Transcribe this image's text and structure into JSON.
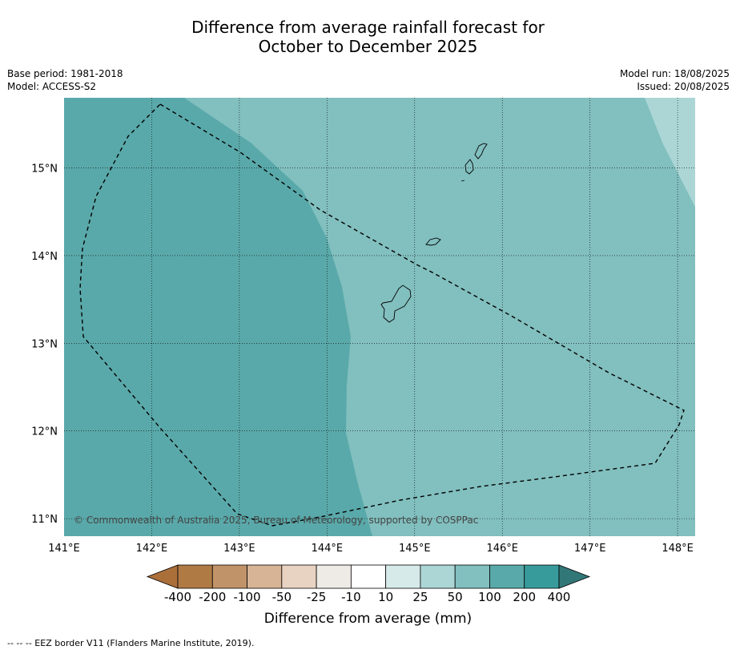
{
  "title": {
    "line1": "Difference from average rainfall forecast for",
    "line2": "October to December 2025"
  },
  "meta": {
    "base_period": "Base period: 1981-2018",
    "model": "Model: ACCESS-S2",
    "model_run": "Model run: 18/08/2025",
    "issued": "Issued: 20/08/2025"
  },
  "map": {
    "copyright": "© Commonwealth of Australia 2025, Bureau of Meteorology, supported by COSPPac",
    "lon_range": [
      141.0,
      148.2
    ],
    "lat_range": [
      10.8,
      15.8
    ],
    "lon_labels": [
      "141°E",
      "142°E",
      "143°E",
      "144°E",
      "145°E",
      "146°E",
      "147°E",
      "148°E"
    ],
    "lat_labels": [
      "15°N",
      "14°N",
      "13°N",
      "12°N",
      "11°N"
    ],
    "gridlines": "dotted",
    "shading": [
      {
        "category": "200 to 400",
        "color": "#5aa9aa"
      },
      {
        "category": "100 to 200",
        "color": "#82bfbf"
      },
      {
        "category": "50 to 100",
        "color": "#acd6d6"
      }
    ]
  },
  "colorbar": {
    "labels": [
      "-400",
      "-200",
      "-100",
      "-50",
      "-25",
      "-10",
      "10",
      "25",
      "50",
      "100",
      "200",
      "400"
    ],
    "colors": [
      "#ab6f3a",
      "#b07a45",
      "#c19368",
      "#d6b495",
      "#e8d2c1",
      "#eeebe7",
      "#ffffff",
      "#d6ebe9",
      "#acd6d6",
      "#82bfbf",
      "#5aa9aa",
      "#389b9b",
      "#327777"
    ],
    "label": "Difference from average (mm)"
  },
  "footer": {
    "legend": "--  --  -- EEZ border V11 (Flanders Marine Institute, 2019)."
  }
}
